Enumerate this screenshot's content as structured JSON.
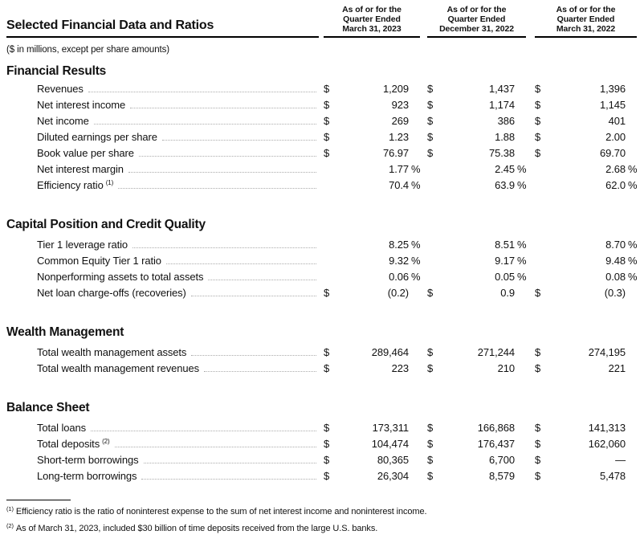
{
  "title": "Selected Financial Data and Ratios",
  "units_note": "($ in millions, except per share amounts)",
  "styles": {
    "text_color": "#111111",
    "rule_color": "#000000",
    "dot_leader_color": "#ababab",
    "background_color": "#ffffff"
  },
  "columns": [
    {
      "lines": [
        "As of or for the",
        "Quarter Ended",
        "March 31, 2023"
      ]
    },
    {
      "lines": [
        "As of or for the",
        "Quarter Ended",
        "December 31, 2022"
      ]
    },
    {
      "lines": [
        "As of or for the",
        "Quarter Ended",
        "March 31, 2022"
      ]
    }
  ],
  "sections": [
    {
      "name": "Financial Results",
      "rows": [
        {
          "label": "Revenues",
          "cur": "$",
          "sfx": "",
          "values": [
            "1,209",
            "1,437",
            "1,396"
          ]
        },
        {
          "label": "Net interest income",
          "cur": "$",
          "sfx": "",
          "values": [
            "923",
            "1,174",
            "1,145"
          ]
        },
        {
          "label": "Net income",
          "cur": "$",
          "sfx": "",
          "values": [
            "269",
            "386",
            "401"
          ]
        },
        {
          "label": "Diluted earnings per share",
          "cur": "$",
          "sfx": "",
          "values": [
            "1.23",
            "1.88",
            "2.00"
          ]
        },
        {
          "label": "Book value per share",
          "cur": "$",
          "sfx": "",
          "values": [
            "76.97",
            "75.38",
            "69.70"
          ]
        },
        {
          "label": "Net interest margin",
          "cur": "",
          "sfx": "%",
          "values": [
            "1.77",
            "2.45",
            "2.68"
          ]
        },
        {
          "label": "Efficiency ratio",
          "sup": "(1)",
          "cur": "",
          "sfx": "%",
          "values": [
            "70.4",
            "63.9",
            "62.0"
          ]
        }
      ]
    },
    {
      "name": "Capital Position and Credit Quality",
      "rows": [
        {
          "label": "Tier 1 leverage ratio",
          "cur": "",
          "sfx": "%",
          "values": [
            "8.25",
            "8.51",
            "8.70"
          ]
        },
        {
          "label": "Common Equity Tier 1 ratio",
          "cur": "",
          "sfx": "%",
          "values": [
            "9.32",
            "9.17",
            "9.48"
          ]
        },
        {
          "label": "Nonperforming assets to total assets",
          "cur": "",
          "sfx": "%",
          "values": [
            "0.06",
            "0.05",
            "0.08"
          ]
        },
        {
          "label": "Net loan charge-offs (recoveries)",
          "cur": "$",
          "sfx": "",
          "values": [
            "(0.2)",
            "0.9",
            "(0.3)"
          ]
        }
      ]
    },
    {
      "name": "Wealth Management",
      "rows": [
        {
          "label": "Total wealth management assets",
          "cur": "$",
          "sfx": "",
          "values": [
            "289,464",
            "271,244",
            "274,195"
          ]
        },
        {
          "label": "Total wealth management revenues",
          "cur": "$",
          "sfx": "",
          "values": [
            "223",
            "210",
            "221"
          ]
        }
      ]
    },
    {
      "name": "Balance Sheet",
      "rows": [
        {
          "label": "Total loans",
          "cur": "$",
          "sfx": "",
          "values": [
            "173,311",
            "166,868",
            "141,313"
          ]
        },
        {
          "label": "Total deposits",
          "sup": "(2)",
          "cur": "$",
          "sfx": "",
          "values": [
            "104,474",
            "176,437",
            "162,060"
          ]
        },
        {
          "label": "Short-term borrowings",
          "cur": "$",
          "sfx": "",
          "values": [
            "80,365",
            "6,700",
            "—"
          ]
        },
        {
          "label": "Long-term borrowings",
          "cur": "$",
          "sfx": "",
          "values": [
            "26,304",
            "8,579",
            "5,478"
          ]
        }
      ]
    }
  ],
  "footnotes": [
    {
      "sup": "(1)",
      "text": "Efficiency ratio is the ratio of noninterest expense to the sum of net interest income and noninterest income."
    },
    {
      "sup": "(2)",
      "text": "As of March 31, 2023, included $30 billion of time deposits received from the large U.S. banks."
    }
  ]
}
